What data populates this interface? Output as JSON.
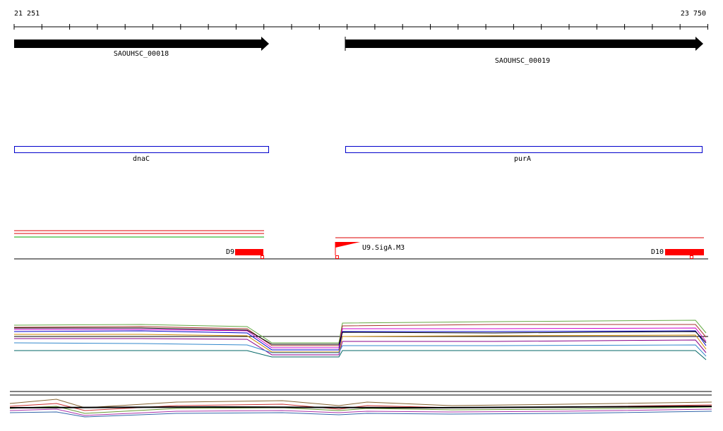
{
  "ruler": {
    "start": "21 251",
    "end": "23 750"
  },
  "genes": [
    {
      "label": "SAOUHSC_00018"
    },
    {
      "label": "SAOUHSC_00019"
    }
  ],
  "features": [
    {
      "label": "dnaC"
    },
    {
      "label": "purA"
    }
  ],
  "regions": [
    {
      "label": "D9"
    },
    {
      "label": "U9.SigA.M3"
    },
    {
      "label": "D10"
    }
  ]
}
